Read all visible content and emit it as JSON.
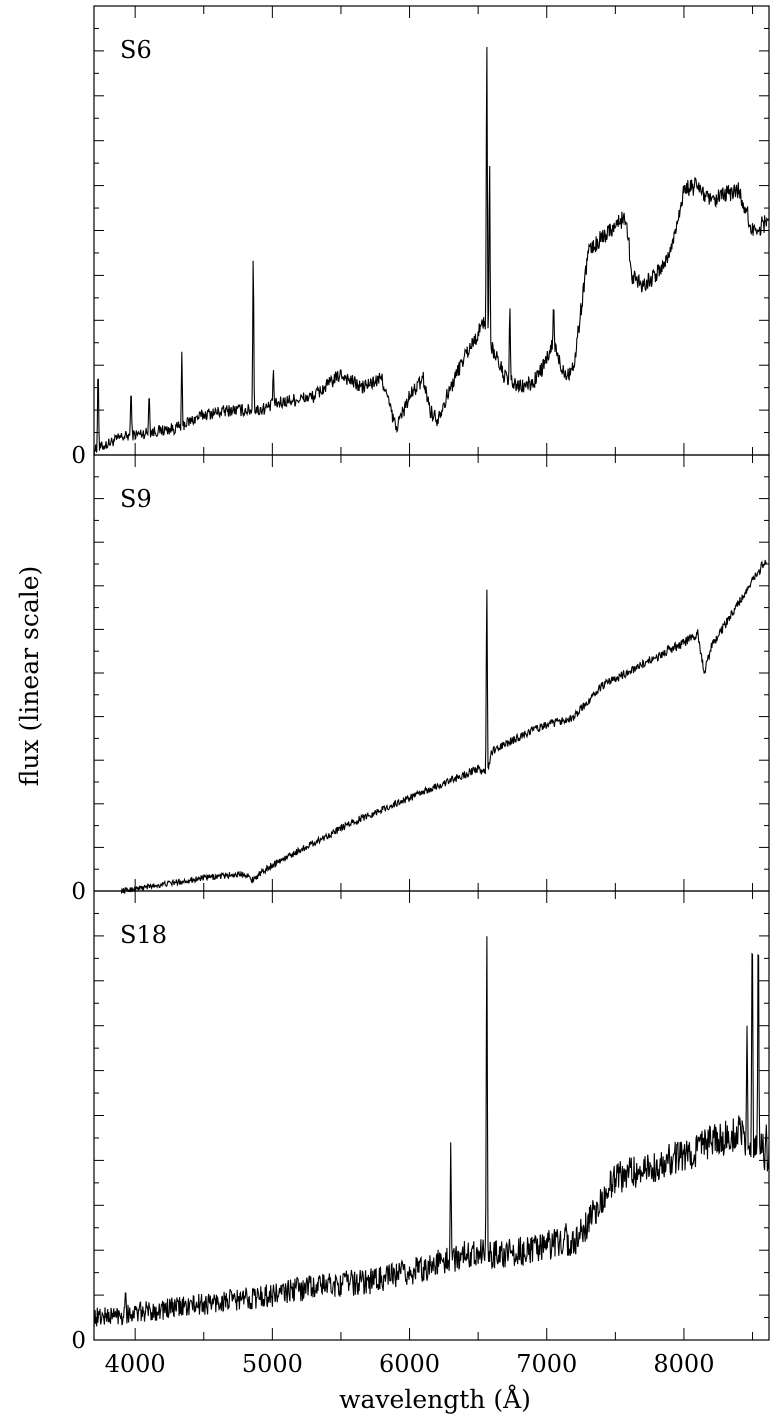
{
  "figure": {
    "ylabel": "flux (linear scale)",
    "xlabel": "wavelength (Å)"
  },
  "chart_data": [
    {
      "type": "line",
      "panel_label": "S6",
      "xlim": [
        3700,
        8620
      ],
      "ylim": [
        0,
        10
      ],
      "x_ticks": [
        4000,
        5000,
        6000,
        7000,
        8000
      ],
      "y_tick_labels": [
        "0"
      ],
      "continuum": [
        [
          3700,
          0.1
        ],
        [
          3900,
          0.4
        ],
        [
          4100,
          0.5
        ],
        [
          4300,
          0.6
        ],
        [
          4500,
          0.9
        ],
        [
          4700,
          1.0
        ],
        [
          4900,
          1.0
        ],
        [
          5100,
          1.2
        ],
        [
          5300,
          1.3
        ],
        [
          5500,
          1.8
        ],
        [
          5650,
          1.5
        ],
        [
          5800,
          1.7
        ],
        [
          5900,
          0.6
        ],
        [
          6000,
          1.3
        ],
        [
          6100,
          1.7
        ],
        [
          6150,
          1.0
        ],
        [
          6200,
          0.8
        ],
        [
          6300,
          1.5
        ],
        [
          6400,
          2.2
        ],
        [
          6500,
          2.7
        ],
        [
          6540,
          3.0
        ],
        [
          6600,
          2.4
        ],
        [
          6700,
          1.7
        ],
        [
          6800,
          1.5
        ],
        [
          6900,
          1.6
        ],
        [
          7000,
          2.1
        ],
        [
          7050,
          2.5
        ],
        [
          7100,
          2.0
        ],
        [
          7150,
          1.8
        ],
        [
          7200,
          2.0
        ],
        [
          7300,
          4.5
        ],
        [
          7450,
          5.0
        ],
        [
          7580,
          5.3
        ],
        [
          7620,
          4.0
        ],
        [
          7700,
          3.8
        ],
        [
          7800,
          4.0
        ],
        [
          7900,
          4.5
        ],
        [
          8000,
          5.9
        ],
        [
          8100,
          6.0
        ],
        [
          8200,
          5.6
        ],
        [
          8300,
          5.8
        ],
        [
          8400,
          5.9
        ],
        [
          8500,
          5.0
        ],
        [
          8620,
          5.2
        ]
      ],
      "lines": [
        [
          3730,
          2.2
        ],
        [
          3970,
          1.6
        ],
        [
          4102,
          1.5
        ],
        [
          4340,
          2.3
        ],
        [
          4861,
          4.8
        ],
        [
          5007,
          2.0
        ],
        [
          6563,
          10.0
        ],
        [
          6583,
          7.0
        ],
        [
          6731,
          3.5
        ],
        [
          7050,
          3.5
        ]
      ],
      "noise": 0.12
    },
    {
      "type": "line",
      "panel_label": "S9",
      "xlim": [
        3700,
        8620
      ],
      "ylim": [
        0,
        10
      ],
      "x_ticks": [
        4000,
        5000,
        6000,
        7000,
        8000
      ],
      "y_tick_labels": [
        "0"
      ],
      "continuum": [
        [
          3900,
          0.0
        ],
        [
          4000,
          0.05
        ],
        [
          4200,
          0.15
        ],
        [
          4500,
          0.3
        ],
        [
          4800,
          0.4
        ],
        [
          4850,
          0.25
        ],
        [
          5000,
          0.6
        ],
        [
          5300,
          1.1
        ],
        [
          5600,
          1.6
        ],
        [
          5900,
          2.0
        ],
        [
          6200,
          2.4
        ],
        [
          6500,
          2.8
        ],
        [
          6563,
          2.7
        ],
        [
          6600,
          3.2
        ],
        [
          6900,
          3.7
        ],
        [
          7200,
          4.0
        ],
        [
          7400,
          4.7
        ],
        [
          7700,
          5.2
        ],
        [
          8000,
          5.7
        ],
        [
          8100,
          5.9
        ],
        [
          8150,
          5.0
        ],
        [
          8200,
          5.6
        ],
        [
          8400,
          6.6
        ],
        [
          8600,
          7.6
        ]
      ],
      "lines": [
        [
          6563,
          7.5
        ]
      ],
      "noise": 0.06
    },
    {
      "type": "line",
      "panel_label": "S18",
      "xlim": [
        3700,
        8620
      ],
      "ylim": [
        0,
        10
      ],
      "x_ticks": [
        4000,
        5000,
        6000,
        7000,
        8000
      ],
      "y_tick_labels": [
        "0"
      ],
      "continuum": [
        [
          3700,
          0.5
        ],
        [
          4000,
          0.6
        ],
        [
          4500,
          0.8
        ],
        [
          5000,
          1.0
        ],
        [
          5300,
          1.2
        ],
        [
          5700,
          1.3
        ],
        [
          6000,
          1.5
        ],
        [
          6300,
          1.8
        ],
        [
          6500,
          2.0
        ],
        [
          6600,
          1.9
        ],
        [
          6900,
          2.0
        ],
        [
          7000,
          2.1
        ],
        [
          7200,
          2.2
        ],
        [
          7300,
          2.6
        ],
        [
          7500,
          3.6
        ],
        [
          7800,
          3.9
        ],
        [
          8000,
          4.1
        ],
        [
          8200,
          4.4
        ],
        [
          8400,
          4.6
        ],
        [
          8620,
          4.1
        ]
      ],
      "lines": [
        [
          3930,
          1.2
        ],
        [
          4870,
          1.0
        ],
        [
          5180,
          1.4
        ],
        [
          5270,
          1.5
        ],
        [
          5577,
          1.6
        ],
        [
          6300,
          4.4
        ],
        [
          6363,
          1.4
        ],
        [
          6563,
          10.0
        ],
        [
          7140,
          2.6
        ],
        [
          8400,
          5.0
        ],
        [
          8460,
          7.0
        ],
        [
          8498,
          10.0
        ],
        [
          8542,
          10.0
        ],
        [
          8600,
          4.8
        ]
      ],
      "noise": 0.22
    }
  ]
}
